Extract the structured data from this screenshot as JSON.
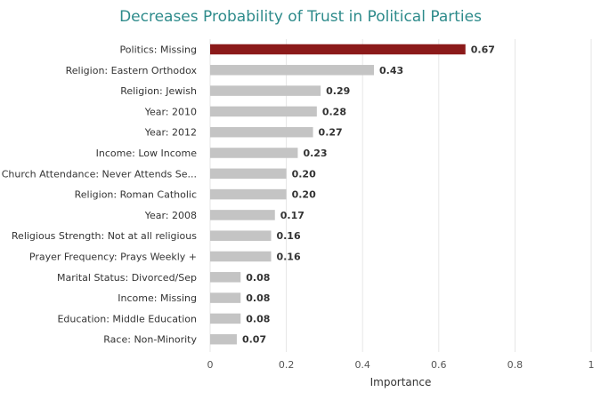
{
  "chart_data": {
    "type": "bar",
    "orientation": "horizontal",
    "title": "Decreases Probability of Trust in Political Parties",
    "xlabel": "Importance",
    "ylabel": "",
    "xlim": [
      0,
      1
    ],
    "xticks": [
      "0",
      "0.2",
      "0.4",
      "0.6",
      "0.8",
      "1"
    ],
    "grid": true,
    "categories": [
      "Politics: Missing",
      "Religion: Eastern Orthodox",
      "Religion: Jewish",
      "Year: 2010",
      "Year: 2012",
      "Income: Low Income",
      "Church Attendance: Never Attends Se...",
      "Religion: Roman Catholic",
      "Year: 2008",
      "Religious Strength: Not at all religious",
      "Prayer Frequency: Prays Weekly +",
      "Marital Status: Divorced/Sep",
      "Income: Missing",
      "Education: Middle Education",
      "Race: Non-Minority"
    ],
    "values": [
      0.67,
      0.43,
      0.29,
      0.28,
      0.27,
      0.23,
      0.2,
      0.2,
      0.17,
      0.16,
      0.16,
      0.08,
      0.08,
      0.08,
      0.07
    ],
    "value_labels": [
      "0.67",
      "0.43",
      "0.29",
      "0.28",
      "0.27",
      "0.23",
      "0.20",
      "0.20",
      "0.17",
      "0.16",
      "0.16",
      "0.08",
      "0.08",
      "0.08",
      "0.07"
    ],
    "colors": {
      "highlight": "#8b1a1a",
      "default": "#c4c4c4",
      "grid": "#e6e6e6",
      "title": "#2e8b8b"
    },
    "highlight_index": 0
  }
}
